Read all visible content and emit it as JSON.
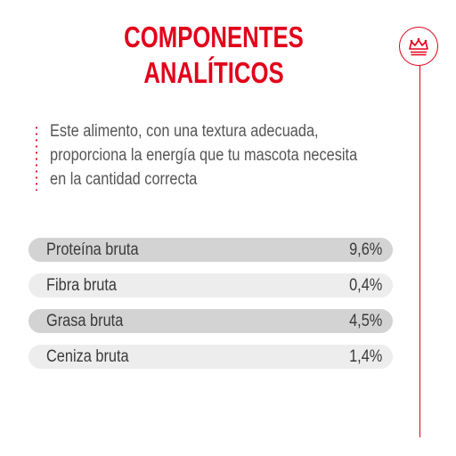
{
  "title": {
    "line1": "COMPONENTES",
    "line2": "ANALÍTICOS"
  },
  "description": {
    "line1": "Este alimento, con una textura adecuada,",
    "line2": "proporciona la energía que tu mascota necesita",
    "line3": "en la cantidad correcta"
  },
  "components": [
    {
      "label": "Proteína bruta",
      "value": "9,6%"
    },
    {
      "label": "Fibra bruta",
      "value": "0,4%"
    },
    {
      "label": "Grasa bruta",
      "value": "4,5%"
    },
    {
      "label": "Ceniza bruta",
      "value": "1,4%"
    }
  ],
  "brand": {
    "icon": "crown-icon",
    "color": "#e2001a"
  },
  "colors": {
    "accent": "#e2001a",
    "row_light": "#ededed",
    "row_dark": "#d3d3d3",
    "text": "#3a3a3a"
  }
}
